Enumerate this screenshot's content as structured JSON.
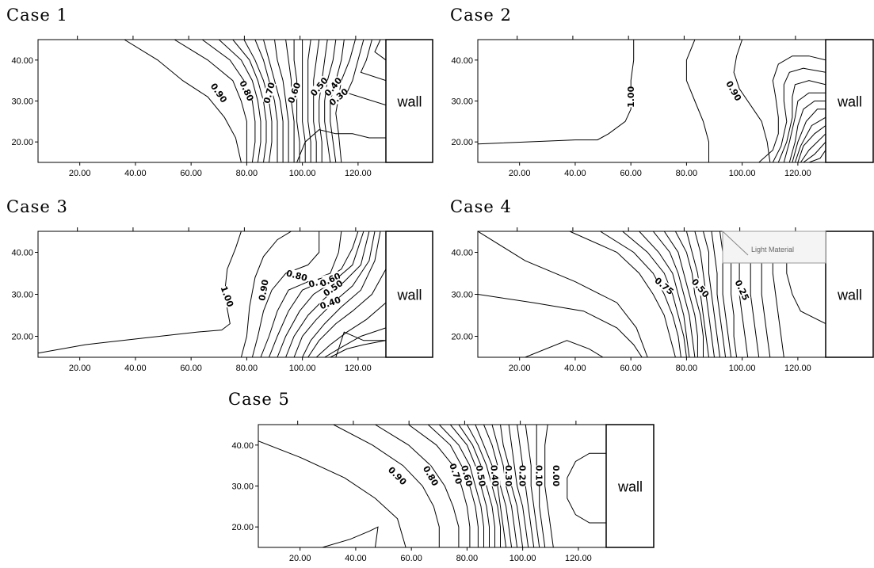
{
  "wall_label": "wall",
  "tooltip_text": "Light Material",
  "chart_data": [
    {
      "type": "contour",
      "title": "Case 1",
      "xlim": [
        5,
        130
      ],
      "ylim": [
        15,
        45
      ],
      "x_ticks": [
        "20.00",
        "40.00",
        "60.00",
        "80.00",
        "100.00",
        "120.00"
      ],
      "y_ticks": [
        "20.00",
        "30.00",
        "40.00"
      ],
      "contour_labels": [
        {
          "text": "0.90",
          "x": 70,
          "y": 32,
          "rot": 55
        },
        {
          "text": "0.80",
          "x": 80,
          "y": 32.5,
          "rot": 65
        },
        {
          "text": "0.70",
          "x": 88,
          "y": 32,
          "rot": -75
        },
        {
          "text": "0.60",
          "x": 97,
          "y": 32,
          "rot": -70
        },
        {
          "text": "0.50",
          "x": 106,
          "y": 33.5,
          "rot": -50
        },
        {
          "text": "0.40",
          "x": 111,
          "y": 33.5,
          "rot": -50
        },
        {
          "text": "0.30",
          "x": 113,
          "y": 31,
          "rot": -40
        }
      ]
    },
    {
      "type": "contour",
      "title": "Case 2",
      "xlim": [
        5,
        130
      ],
      "ylim": [
        15,
        45
      ],
      "x_ticks": [
        "20.00",
        "40.00",
        "60.00",
        "80.00",
        "100.00",
        "120.00"
      ],
      "y_ticks": [
        "20.00",
        "30.00",
        "40.00"
      ],
      "contour_labels": [
        {
          "text": "1.00",
          "x": 60,
          "y": 31,
          "rot": -90
        },
        {
          "text": "0.90",
          "x": 97,
          "y": 32.5,
          "rot": 60
        }
      ]
    },
    {
      "type": "contour",
      "title": "Case 3",
      "xlim": [
        5,
        130
      ],
      "ylim": [
        15,
        45
      ],
      "x_ticks": [
        "20.00",
        "40.00",
        "60.00",
        "80.00",
        "100.00",
        "120.00"
      ],
      "y_ticks": [
        "20.00",
        "30.00",
        "40.00"
      ],
      "contour_labels": [
        {
          "text": "1.00",
          "x": 73,
          "y": 29.5,
          "rot": 70
        },
        {
          "text": "0.90",
          "x": 86,
          "y": 31,
          "rot": -80
        },
        {
          "text": "0.80",
          "x": 98,
          "y": 34.5,
          "rot": 15
        },
        {
          "text": "0.70",
          "x": 106,
          "y": 33,
          "rot": -15
        },
        {
          "text": "0.60",
          "x": 110,
          "y": 33.5,
          "rot": -25
        },
        {
          "text": "0.50",
          "x": 111,
          "y": 31.5,
          "rot": -35
        },
        {
          "text": "0.40",
          "x": 110,
          "y": 28,
          "rot": -20
        }
      ]
    },
    {
      "type": "contour",
      "title": "Case 4",
      "xlim": [
        5,
        130
      ],
      "ylim": [
        15,
        45
      ],
      "x_ticks": [
        "20.00",
        "40.00",
        "60.00",
        "80.00",
        "100.00",
        "120.00"
      ],
      "y_ticks": [
        "20.00",
        "30.00",
        "40.00"
      ],
      "contour_labels": [
        {
          "text": "0.75",
          "x": 72,
          "y": 32,
          "rot": 40
        },
        {
          "text": "0.50",
          "x": 85,
          "y": 31.5,
          "rot": 50
        },
        {
          "text": "0.25",
          "x": 100,
          "y": 31,
          "rot": 65
        }
      ]
    },
    {
      "type": "contour",
      "title": "Case 5",
      "xlim": [
        5,
        130
      ],
      "ylim": [
        15,
        45
      ],
      "x_ticks": [
        "20.00",
        "40.00",
        "60.00",
        "80.00",
        "100.00",
        "120.00"
      ],
      "y_ticks": [
        "20.00",
        "30.00",
        "40.00"
      ],
      "contour_labels": [
        {
          "text": "0.90",
          "x": 55,
          "y": 32.5,
          "rot": 45
        },
        {
          "text": "0.80",
          "x": 67,
          "y": 32.5,
          "rot": 60
        },
        {
          "text": "0.70",
          "x": 76,
          "y": 33,
          "rot": 70
        },
        {
          "text": "0.60",
          "x": 80,
          "y": 32.5,
          "rot": 75
        },
        {
          "text": "0.50",
          "x": 85,
          "y": 32.5,
          "rot": 80
        },
        {
          "text": "0.40",
          "x": 90,
          "y": 32.5,
          "rot": 85
        },
        {
          "text": "0.30",
          "x": 95,
          "y": 32.5,
          "rot": 90
        },
        {
          "text": "0.20",
          "x": 100,
          "y": 32.5,
          "rot": 90
        },
        {
          "text": "0.10",
          "x": 106,
          "y": 32.5,
          "rot": 90
        },
        {
          "text": "0.00",
          "x": 112,
          "y": 32.5,
          "rot": 90
        }
      ]
    }
  ]
}
